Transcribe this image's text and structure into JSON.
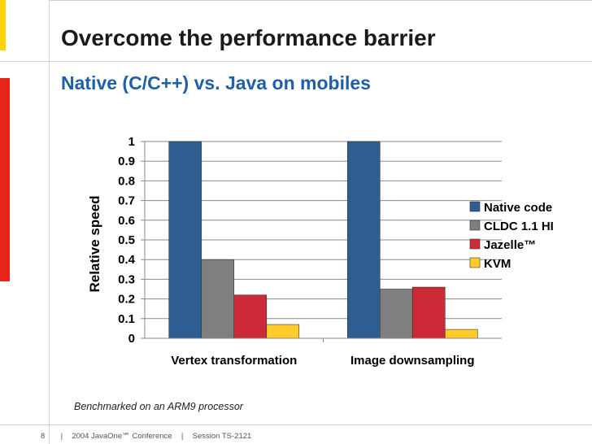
{
  "slide": {
    "title": "Overcome the performance barrier",
    "subtitle": "Native (C/C++) vs. Java on mobiles",
    "footnote": "Benchmarked on an ARM9 processor",
    "footer": {
      "page_number": "8",
      "separator": "|",
      "conference": "2004 JavaOne℠ Conference",
      "session": "Session TS-2121"
    }
  },
  "colors": {
    "yellow": "#ffd400",
    "red": "#e8231b",
    "gray": "#cfcfcf",
    "subtitle": "#1f5fa7"
  },
  "chart_data": {
    "type": "bar",
    "categories": [
      "Vertex transformation",
      "Image downsampling"
    ],
    "series": [
      {
        "name": "Native code",
        "values": [
          1.0,
          1.0
        ],
        "color": "#2e5d91"
      },
      {
        "name": "CLDC 1.1 HI",
        "values": [
          0.4,
          0.25
        ],
        "color": "#7f7f7f"
      },
      {
        "name": "Jazelle™",
        "values": [
          0.22,
          0.26
        ],
        "color": "#cc2a36"
      },
      {
        "name": "KVM",
        "values": [
          0.07,
          0.045
        ],
        "color": "#ffcc29"
      }
    ],
    "ylabel": "Relative speed",
    "xlabel": "",
    "ylim": [
      0,
      1
    ],
    "yticks": [
      "0",
      "0.1",
      "0.2",
      "0.3",
      "0.4",
      "0.5",
      "0.6",
      "0.7",
      "0.8",
      "0.9",
      "1"
    ],
    "grid": true,
    "legend": "right"
  }
}
